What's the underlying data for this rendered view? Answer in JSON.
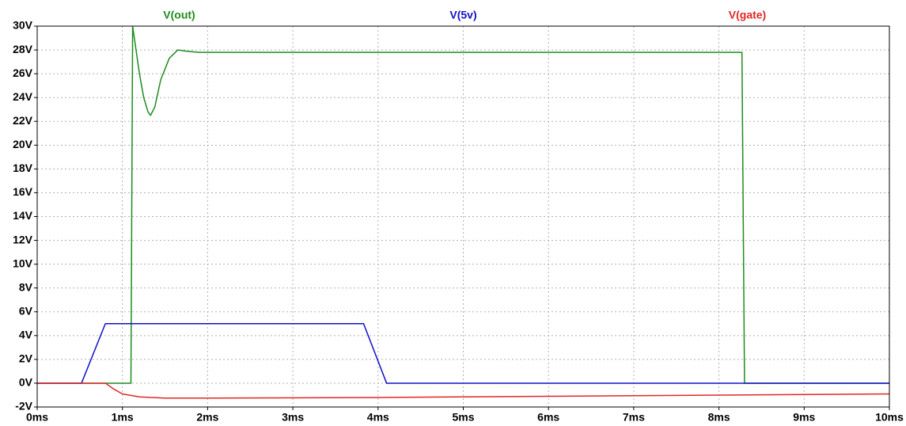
{
  "chart_data": {
    "type": "line",
    "xlim": [
      0,
      10
    ],
    "xticks": [
      {
        "value": 0,
        "label": "0ms"
      },
      {
        "value": 1,
        "label": "1ms"
      },
      {
        "value": 2,
        "label": "2ms"
      },
      {
        "value": 3,
        "label": "3ms"
      },
      {
        "value": 4,
        "label": "4ms"
      },
      {
        "value": 5,
        "label": "5ms"
      },
      {
        "value": 6,
        "label": "6ms"
      },
      {
        "value": 7,
        "label": "7ms"
      },
      {
        "value": 8,
        "label": "8ms"
      },
      {
        "value": 9,
        "label": "9ms"
      },
      {
        "value": 10,
        "label": "10ms"
      }
    ],
    "ylim": [
      -2,
      30
    ],
    "yticks": [
      {
        "value": -2,
        "label": "-2V"
      },
      {
        "value": 0,
        "label": "0V"
      },
      {
        "value": 2,
        "label": "2V"
      },
      {
        "value": 4,
        "label": "4V"
      },
      {
        "value": 6,
        "label": "6V"
      },
      {
        "value": 8,
        "label": "8V"
      },
      {
        "value": 10,
        "label": "10V"
      },
      {
        "value": 12,
        "label": "12V"
      },
      {
        "value": 14,
        "label": "14V"
      },
      {
        "value": 16,
        "label": "16V"
      },
      {
        "value": 18,
        "label": "18V"
      },
      {
        "value": 20,
        "label": "20V"
      },
      {
        "value": 22,
        "label": "22V"
      },
      {
        "value": 24,
        "label": "24V"
      },
      {
        "value": 26,
        "label": "26V"
      },
      {
        "value": 28,
        "label": "28V"
      },
      {
        "value": 30,
        "label": "30V"
      }
    ],
    "grid": true,
    "series": [
      {
        "name": "V(out)",
        "color": "#1e8c1e",
        "x": [
          0,
          1.1,
          1.12,
          1.15,
          1.2,
          1.25,
          1.3,
          1.33,
          1.38,
          1.45,
          1.55,
          1.65,
          1.75,
          1.9,
          8.27,
          8.3,
          10
        ],
        "values": [
          0,
          0,
          30,
          28.5,
          26,
          24,
          22.8,
          22.5,
          23.2,
          25.5,
          27.3,
          28,
          27.9,
          27.8,
          27.8,
          0,
          0
        ]
      },
      {
        "name": "V(5v)",
        "color": "#1010c8",
        "x": [
          0,
          0.52,
          0.8,
          3.83,
          4.1,
          10
        ],
        "values": [
          0,
          0,
          5,
          5,
          0,
          0
        ]
      },
      {
        "name": "V(gate)",
        "color": "#e02828",
        "x": [
          0,
          0.8,
          0.9,
          1.0,
          1.2,
          1.5,
          2,
          4,
          6,
          8,
          10
        ],
        "values": [
          0,
          0,
          -0.5,
          -0.9,
          -1.15,
          -1.25,
          -1.25,
          -1.2,
          -1.1,
          -1.0,
          -0.9
        ]
      }
    ]
  }
}
